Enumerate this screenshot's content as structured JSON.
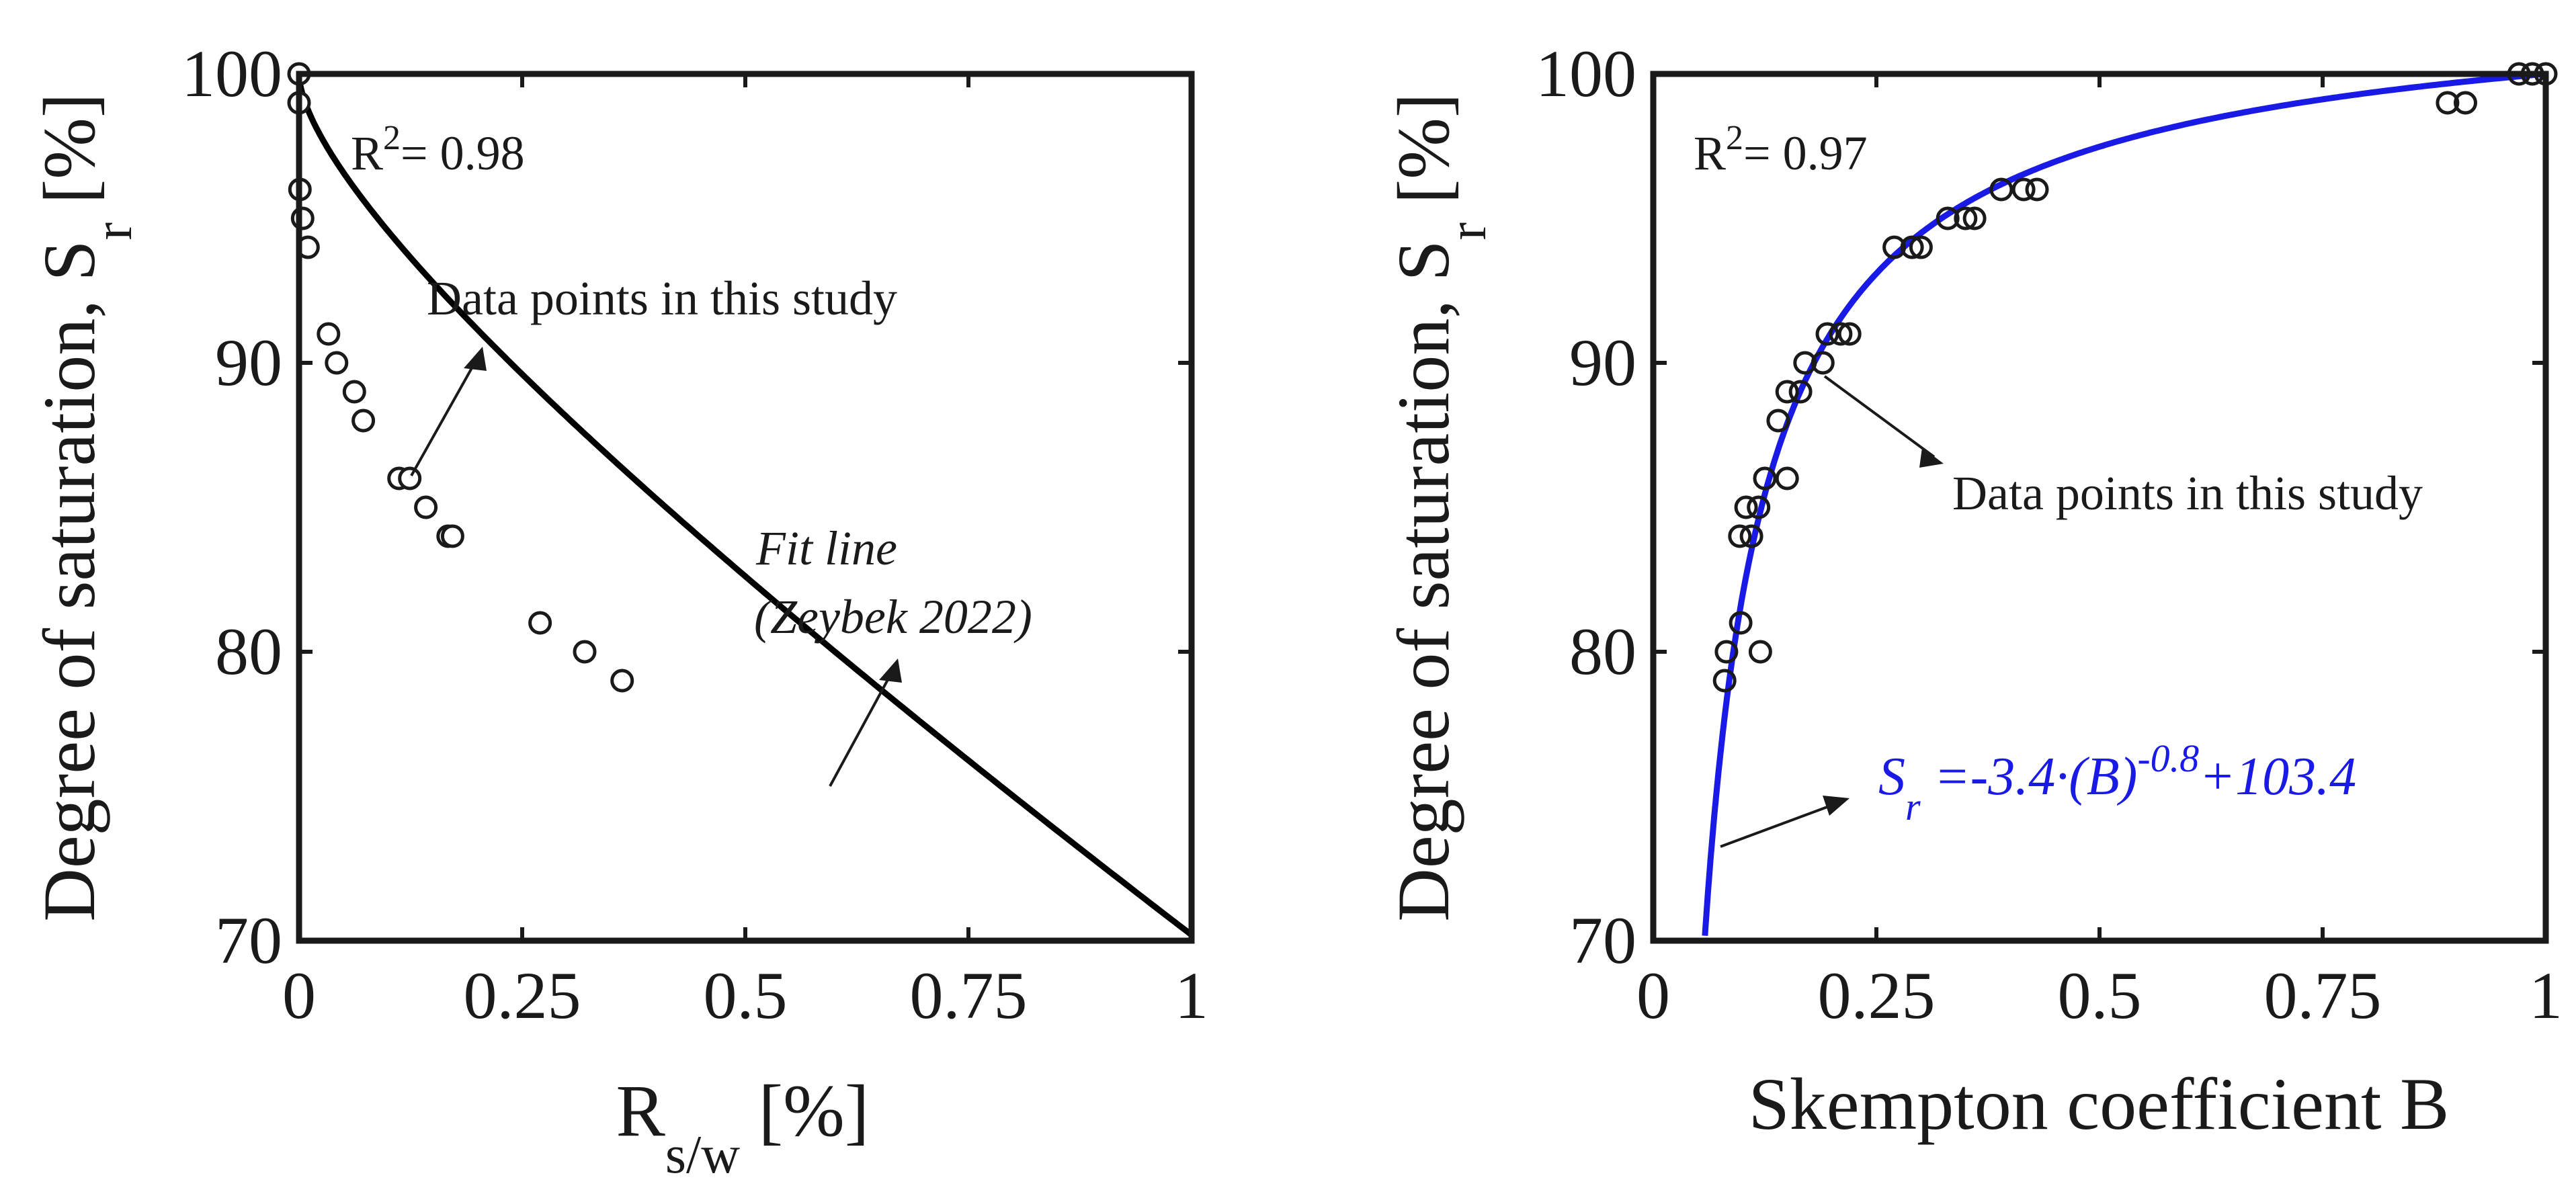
{
  "chart_data": [
    {
      "type": "scatter",
      "id": "left",
      "xlabel_main": "R",
      "xlabel_sub": "s/w",
      "xlabel_unit": " [%]",
      "ylabel_main": "Degree of saturation, S",
      "ylabel_sub": "r",
      "ylabel_unit": " [%]",
      "xlim": [
        0,
        1
      ],
      "ylim": [
        70,
        100
      ],
      "xticks": [
        0,
        0.25,
        0.5,
        0.75,
        1
      ],
      "xtick_labels": [
        "0",
        "0.25",
        "0.5",
        "0.75",
        "1"
      ],
      "yticks": [
        70,
        80,
        90,
        100
      ],
      "ytick_labels": [
        "70",
        "80",
        "90",
        "100"
      ],
      "r2_main": "R",
      "r2_sup": "2",
      "r2_value": "= 0.98",
      "annotation_points": "Data points in this study",
      "fit_label_line1": "Fit line",
      "fit_label_line2": "(Zeybek 2022)",
      "fit_color": "#000000",
      "points": [
        {
          "x": 0.0,
          "y": 100
        },
        {
          "x": 0.0,
          "y": 99
        },
        {
          "x": 0.001,
          "y": 96
        },
        {
          "x": 0.004,
          "y": 95
        },
        {
          "x": 0.01,
          "y": 94
        },
        {
          "x": 0.033,
          "y": 91
        },
        {
          "x": 0.042,
          "y": 90
        },
        {
          "x": 0.062,
          "y": 89
        },
        {
          "x": 0.072,
          "y": 88
        },
        {
          "x": 0.112,
          "y": 86
        },
        {
          "x": 0.124,
          "y": 86
        },
        {
          "x": 0.142,
          "y": 85
        },
        {
          "x": 0.167,
          "y": 84
        },
        {
          "x": 0.172,
          "y": 84
        },
        {
          "x": 0.27,
          "y": 81
        },
        {
          "x": 0.32,
          "y": 80
        },
        {
          "x": 0.362,
          "y": 79
        }
      ]
    },
    {
      "type": "scatter",
      "id": "right",
      "xlabel": "Skempton coefficient B",
      "ylabel_main": "Degree of saturation, S",
      "ylabel_sub": "r",
      "ylabel_unit": " [%]",
      "xlim": [
        0,
        1
      ],
      "ylim": [
        70,
        100
      ],
      "xticks": [
        0,
        0.25,
        0.5,
        0.75,
        1
      ],
      "xtick_labels": [
        "0",
        "0.25",
        "0.5",
        "0.75",
        "1"
      ],
      "yticks": [
        70,
        80,
        90,
        100
      ],
      "ytick_labels": [
        "70",
        "80",
        "90",
        "100"
      ],
      "r2_main": "R",
      "r2_sup": "2",
      "r2_value": "= 0.97",
      "annotation_points": "Data points in this study",
      "fit_color": "#1a1ae6",
      "equation": {
        "s": "S",
        "sub": "r",
        "mid": " =-3.4·(B)",
        "sup": "-0.8",
        "end": "+103.4"
      },
      "fit": {
        "a": -3.4,
        "b": -0.8,
        "c": 103.4
      },
      "points": [
        {
          "x": 0.08,
          "y": 79
        },
        {
          "x": 0.082,
          "y": 80
        },
        {
          "x": 0.098,
          "y": 81
        },
        {
          "x": 0.12,
          "y": 80
        },
        {
          "x": 0.097,
          "y": 84
        },
        {
          "x": 0.11,
          "y": 84
        },
        {
          "x": 0.104,
          "y": 85
        },
        {
          "x": 0.118,
          "y": 85
        },
        {
          "x": 0.125,
          "y": 86
        },
        {
          "x": 0.15,
          "y": 86
        },
        {
          "x": 0.14,
          "y": 88
        },
        {
          "x": 0.15,
          "y": 89
        },
        {
          "x": 0.165,
          "y": 89
        },
        {
          "x": 0.17,
          "y": 90
        },
        {
          "x": 0.19,
          "y": 90
        },
        {
          "x": 0.195,
          "y": 91
        },
        {
          "x": 0.21,
          "y": 91
        },
        {
          "x": 0.22,
          "y": 91
        },
        {
          "x": 0.27,
          "y": 94
        },
        {
          "x": 0.29,
          "y": 94
        },
        {
          "x": 0.3,
          "y": 94
        },
        {
          "x": 0.33,
          "y": 95
        },
        {
          "x": 0.35,
          "y": 95
        },
        {
          "x": 0.36,
          "y": 95
        },
        {
          "x": 0.39,
          "y": 96
        },
        {
          "x": 0.415,
          "y": 96
        },
        {
          "x": 0.43,
          "y": 96
        },
        {
          "x": 0.89,
          "y": 99
        },
        {
          "x": 0.91,
          "y": 99
        },
        {
          "x": 0.97,
          "y": 100
        },
        {
          "x": 0.985,
          "y": 100
        },
        {
          "x": 1.0,
          "y": 100
        }
      ]
    }
  ]
}
